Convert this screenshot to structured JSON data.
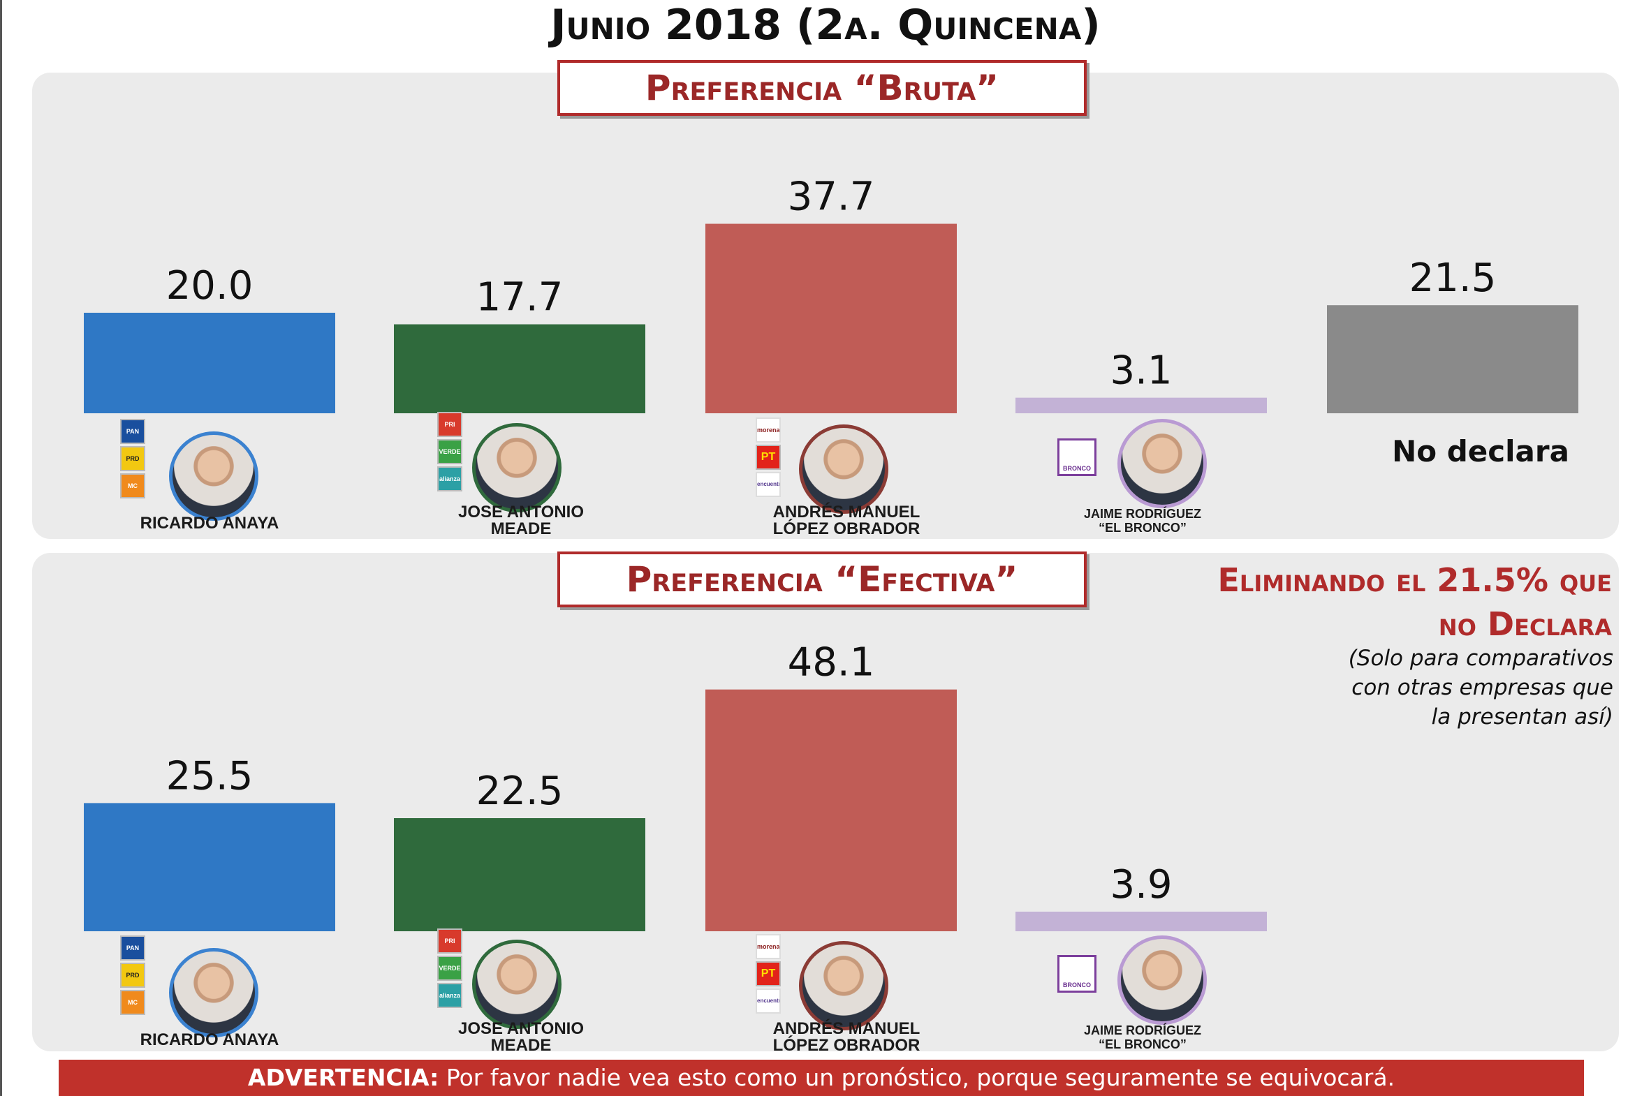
{
  "title": "Junio 2018 (2a. Quincena)",
  "colors": {
    "anaya": "#2f78c5",
    "meade": "#2f6a3c",
    "amlo": "#c05c56",
    "bronco": "#c3b2d6",
    "no_declara": "#8a8a8a",
    "accent": "#b02b2b"
  },
  "chart_data": [
    {
      "type": "bar",
      "title": "Preferencia “Bruta”",
      "categories": [
        "RICARDO ANAYA",
        "JOSE ANTONIO MEADE",
        "ANDRÉS MANUEL LÓPEZ OBRADOR",
        "JAIME RODRÍGUEZ “EL BRONCO”",
        "No declara"
      ],
      "values": [
        20.0,
        17.7,
        37.7,
        3.1,
        21.5
      ],
      "value_labels": [
        "20.0",
        "17.7",
        "37.7",
        "3.1",
        "21.5"
      ],
      "xlabel": "",
      "ylabel": "",
      "ylim": [
        0,
        40
      ]
    },
    {
      "type": "bar",
      "title": "Preferencia “Efectiva”",
      "categories": [
        "RICARDO ANAYA",
        "JOSE ANTONIO MEADE",
        "ANDRÉS MANUEL LÓPEZ OBRADOR",
        "JAIME RODRÍGUEZ “EL BRONCO”"
      ],
      "values": [
        25.5,
        22.5,
        48.1,
        3.9
      ],
      "value_labels": [
        "25.5",
        "22.5",
        "48.1",
        "3.9"
      ],
      "xlabel": "",
      "ylabel": "",
      "ylim": [
        0,
        50
      ]
    }
  ],
  "candidates": [
    {
      "name_line1": "RICARDO ANAYA",
      "name_line2": "",
      "parties": [
        "PAN",
        "PRD",
        "MC"
      ]
    },
    {
      "name_line1": "JOSE ANTONIO",
      "name_line2": "MEADE",
      "parties": [
        "PRI",
        "VERDE",
        "alianza"
      ]
    },
    {
      "name_line1": "ANDRÉS MANUEL",
      "name_line2": "LÓPEZ OBRADOR",
      "parties": [
        "morena",
        "PT",
        "encuentro"
      ]
    },
    {
      "name_line1": "JAIME RODRÍGUEZ",
      "name_line2": "“EL BRONCO”",
      "parties": [
        "BRONCO"
      ]
    }
  ],
  "no_declara_label": "No declara",
  "note": {
    "title_line1": "Eliminando el 21.5% que",
    "title_line2": "no Declara",
    "sub_line1": "(Solo para comparativos",
    "sub_line2": "con otras empresas que",
    "sub_line3": "la presentan así)"
  },
  "warning": {
    "label": "ADVERTENCIA:",
    "text": " Por favor nadie vea esto como un pronóstico, porque seguramente se equivocará."
  }
}
